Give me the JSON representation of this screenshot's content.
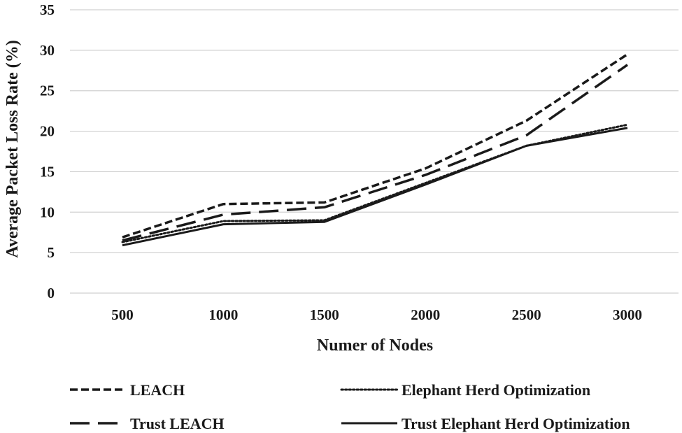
{
  "chart_data": {
    "type": "line",
    "title": "",
    "xlabel": "Numer of Nodes",
    "ylabel": "Average Packet Loss Rate (%)",
    "categories": [
      "500",
      "1000",
      "1500",
      "2000",
      "2500",
      "3000"
    ],
    "yticks": [
      "0",
      "5",
      "10",
      "15",
      "20",
      "25",
      "30",
      "35"
    ],
    "ylim": [
      0,
      35
    ],
    "grid": true,
    "legend_position": "bottom",
    "series": [
      {
        "name": "LEACH",
        "style": "short-dash",
        "values": [
          6.9,
          11.0,
          11.2,
          15.4,
          21.3,
          29.5
        ]
      },
      {
        "name": "Elephant Herd Optimization",
        "style": "dotted",
        "values": [
          6.3,
          8.9,
          9.0,
          13.6,
          18.2,
          20.8
        ]
      },
      {
        "name": "Trust LEACH",
        "style": "long-dash",
        "values": [
          6.5,
          9.7,
          10.6,
          14.6,
          19.5,
          28.2
        ]
      },
      {
        "name": "Trust Elephant Herd Optimization",
        "style": "solid",
        "values": [
          5.9,
          8.5,
          8.8,
          13.4,
          18.2,
          20.4
        ]
      }
    ],
    "colors": {
      "line": "#1a1a1a",
      "grid": "#d0d0d0",
      "background": "#ffffff"
    }
  }
}
